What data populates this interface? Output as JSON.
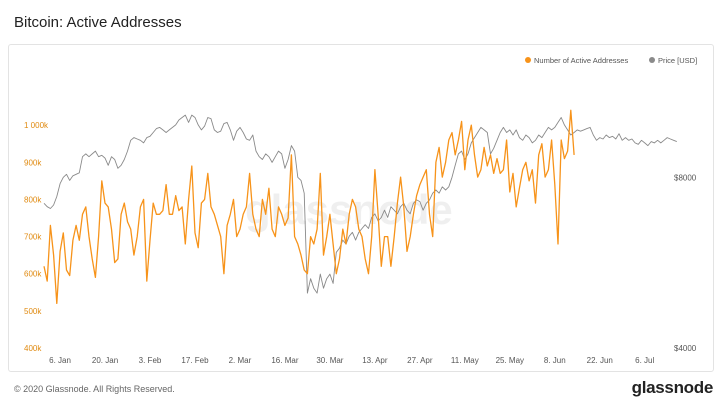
{
  "page": {
    "title": "Bitcoin: Active Addresses",
    "footer": "© 2020 Glassnode. All Rights Reserved.",
    "brand": "glassnode",
    "watermark": "glassnode"
  },
  "colors": {
    "addresses": "#f7931a",
    "price": "#8a8a8a",
    "left_axis": "#e08a10",
    "axis_text": "#555555"
  },
  "chart_data": {
    "type": "line",
    "title": "Bitcoin: Active Addresses",
    "legend_position": "top-right",
    "x_ticks": [
      "6. Jan",
      "20. Jan",
      "3. Feb",
      "17. Feb",
      "2. Mar",
      "16. Mar",
      "30. Mar",
      "13. Apr",
      "27. Apr",
      "11. May",
      "25. May",
      "8. Jun",
      "22. Jun",
      "6. Jul"
    ],
    "x_range": [
      "2020-01-01",
      "2020-07-12"
    ],
    "left_axis": {
      "ticks": [
        "400k",
        "500k",
        "600k",
        "700k",
        "800k",
        "900k",
        "1 000k"
      ],
      "range": [
        400000,
        1100000
      ]
    },
    "right_axis": {
      "ticks": [
        "$4000",
        "$8000"
      ],
      "range": [
        4000,
        11500
      ],
      "scale": "log"
    },
    "series": [
      {
        "name": "Number of Active Addresses",
        "axis": "left",
        "color": "#f7931a",
        "start": "2020-01-01",
        "values": [
          620000,
          580000,
          730000,
          650000,
          520000,
          660000,
          710000,
          610000,
          595000,
          690000,
          730000,
          690000,
          760000,
          780000,
          700000,
          640000,
          590000,
          700000,
          850000,
          790000,
          780000,
          720000,
          630000,
          640000,
          760000,
          790000,
          740000,
          720000,
          650000,
          700000,
          780000,
          800000,
          580000,
          690000,
          790000,
          760000,
          760000,
          770000,
          840000,
          760000,
          760000,
          810000,
          770000,
          780000,
          680000,
          800000,
          890000,
          710000,
          670000,
          790000,
          800000,
          870000,
          780000,
          760000,
          730000,
          700000,
          600000,
          730000,
          760000,
          800000,
          700000,
          720000,
          760000,
          780000,
          870000,
          760000,
          720000,
          700000,
          800000,
          760000,
          830000,
          720000,
          700000,
          780000,
          760000,
          730000,
          750000,
          920000,
          700000,
          680000,
          650000,
          610000,
          600000,
          700000,
          680000,
          720000,
          870000,
          650000,
          700000,
          760000,
          680000,
          600000,
          640000,
          720000,
          680000,
          760000,
          800000,
          780000,
          720000,
          700000,
          640000,
          600000,
          700000,
          880000,
          760000,
          620000,
          700000,
          700000,
          620000,
          700000,
          790000,
          860000,
          780000,
          660000,
          700000,
          760000,
          810000,
          840000,
          860000,
          880000,
          760000,
          700000,
          900000,
          940000,
          860000,
          900000,
          960000,
          980000,
          920000,
          960000,
          1010000,
          880000,
          960000,
          1000000,
          920000,
          860000,
          880000,
          940000,
          890000,
          920000,
          870000,
          910000,
          870000,
          880000,
          960000,
          820000,
          870000,
          780000,
          830000,
          880000,
          900000,
          850000,
          880000,
          790000,
          920000,
          950000,
          860000,
          880000,
          960000,
          840000,
          680000,
          960000,
          910000,
          930000,
          1040000,
          920000
        ]
      },
      {
        "name": "Price [USD]",
        "axis": "right",
        "color": "#8a8a8a",
        "start": "2020-01-01",
        "values": [
          7200,
          7100,
          7050,
          7150,
          7400,
          7800,
          8000,
          8100,
          7900,
          8050,
          8100,
          8150,
          8700,
          8800,
          8700,
          8800,
          8900,
          8700,
          8750,
          8650,
          8400,
          8700,
          8600,
          8300,
          8400,
          8600,
          8900,
          9300,
          9400,
          9350,
          9300,
          9200,
          9400,
          9450,
          9600,
          9750,
          9800,
          9700,
          9600,
          9700,
          9800,
          9900,
          10100,
          10200,
          10300,
          10000,
          10300,
          10200,
          9900,
          9700,
          9850,
          10200,
          10150,
          9700,
          9600,
          9650,
          9950,
          10000,
          9700,
          9300,
          9650,
          9800,
          9600,
          9350,
          9300,
          9500,
          8900,
          8700,
          8600,
          8800,
          8700,
          8500,
          8700,
          8900,
          8800,
          8300,
          8600,
          9100,
          8900,
          8000,
          7900,
          7500,
          5000,
          5300,
          5100,
          5000,
          5400,
          5100,
          5300,
          5400,
          5200,
          5900,
          6000,
          6200,
          6100,
          6300,
          6400,
          6200,
          6400,
          6500,
          6600,
          6500,
          6800,
          6900,
          6700,
          6800,
          7000,
          6800,
          7100,
          7000,
          6900,
          7100,
          7200,
          7000,
          6900,
          7200,
          7300,
          7250,
          7000,
          7200,
          7300,
          7500,
          7600,
          7500,
          7700,
          7600,
          7700,
          8000,
          8400,
          8800,
          8900,
          8600,
          8800,
          9200,
          9400,
          9600,
          9800,
          9700,
          9600,
          8800,
          9000,
          9300,
          9600,
          9800,
          9600,
          9700,
          9500,
          9700,
          9400,
          9300,
          9500,
          9400,
          9200,
          9300,
          9500,
          9400,
          9600,
          9800,
          9700,
          9800,
          10000,
          10200,
          9900,
          9700,
          9500,
          9600,
          9700,
          9650,
          9700,
          9750,
          9800,
          9500,
          9300,
          9400,
          9350,
          9500,
          9400,
          9450,
          9350,
          9550,
          9300,
          9400,
          9300,
          9350,
          9200,
          9150,
          9300,
          9200,
          9100,
          9250,
          9200,
          9300,
          9200,
          9300,
          9400,
          9350,
          9300,
          9250
        ]
      }
    ]
  }
}
